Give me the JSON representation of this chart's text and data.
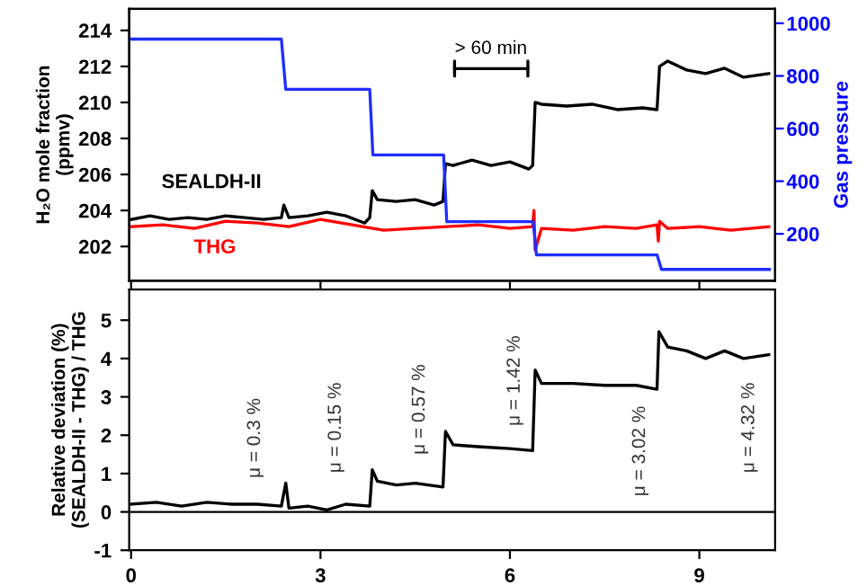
{
  "chart_data": [
    {
      "type": "line",
      "ylabel": "H₂O mole fraction\n(ppmv)",
      "y2label": "Gas pressure",
      "xlim": [
        -0.03,
        10.2
      ],
      "xticks": [
        0,
        3,
        6,
        9
      ],
      "ylim": [
        200.1,
        215.2
      ],
      "yticks": [
        202,
        204,
        206,
        208,
        210,
        212,
        214
      ],
      "y2lim": [
        22,
        1055
      ],
      "y2ticks": [
        200,
        400,
        600,
        800,
        1000
      ],
      "tick_labels": "y",
      "legend": false,
      "annotations": [
        "> 60 min"
      ],
      "series": [
        {
          "name": "SEALDH-II",
          "color": "#000000",
          "x": [
            0,
            0.3,
            0.6,
            0.9,
            1.2,
            1.5,
            1.8,
            2.1,
            2.38,
            2.42,
            2.5,
            2.8,
            3.1,
            3.4,
            3.7,
            3.78,
            3.82,
            3.9,
            4.2,
            4.5,
            4.8,
            4.94,
            4.98,
            5.1,
            5.4,
            5.7,
            6.0,
            6.3,
            6.36,
            6.4,
            6.5,
            6.9,
            7.3,
            7.7,
            8.1,
            8.33,
            8.37,
            8.5,
            8.8,
            9.1,
            9.4,
            9.7,
            10.1
          ],
          "values": [
            203.5,
            203.7,
            203.5,
            203.6,
            203.5,
            203.7,
            203.6,
            203.5,
            203.6,
            204.3,
            203.6,
            203.7,
            203.9,
            203.7,
            203.3,
            203.6,
            205.1,
            204.6,
            204.5,
            204.6,
            204.3,
            204.5,
            206.6,
            206.5,
            206.8,
            206.5,
            206.7,
            206.3,
            206.5,
            210.0,
            209.9,
            209.8,
            209.9,
            209.6,
            209.7,
            209.6,
            212.0,
            212.3,
            211.8,
            211.6,
            211.9,
            211.4,
            211.6
          ]
        },
        {
          "name": "THG",
          "color": "#ff0000",
          "x": [
            0,
            0.5,
            1,
            1.5,
            2,
            2.5,
            3,
            3.5,
            4,
            4.5,
            5,
            5.5,
            6,
            6.36,
            6.38,
            6.4,
            6.5,
            7,
            7.5,
            8,
            8.33,
            8.35,
            8.37,
            8.5,
            9,
            9.5,
            10.1
          ],
          "values": [
            203.1,
            203.2,
            203.0,
            203.4,
            203.3,
            203.1,
            203.5,
            203.2,
            202.9,
            203.0,
            203.1,
            203.2,
            203.0,
            203.1,
            204.0,
            201.8,
            203.0,
            202.9,
            203.1,
            203.0,
            203.2,
            202.3,
            203.4,
            203.0,
            203.1,
            202.9,
            203.1
          ]
        },
        {
          "color": "#1f2fff",
          "axis": "y2",
          "x": [
            0,
            2.38,
            2.45,
            3.78,
            3.83,
            4.95,
            5.0,
            6.37,
            6.42,
            8.33,
            8.4,
            10.11
          ],
          "values": [
            940,
            940,
            749,
            749,
            500,
            500,
            246,
            246,
            120,
            120,
            65,
            65
          ]
        }
      ]
    },
    {
      "type": "line",
      "ylabel": "Relative deviation (%)\n(SEALDH-II - THG) / THG",
      "xlim": [
        -0.03,
        10.2
      ],
      "xticks": [
        0,
        3,
        6,
        9
      ],
      "ylim": [
        -1,
        5.8
      ],
      "yticks": [
        -1,
        0,
        1,
        2,
        3,
        4,
        5
      ],
      "legend": false,
      "ref_lines": [
        {
          "axis": "y",
          "value": 0,
          "color": "#000000"
        }
      ],
      "annotations": [
        "μ = 0.3 %",
        "μ = 0.15 %",
        "μ = 0.57 %",
        "μ = 1.42 %",
        "μ = 3.02 %",
        "μ = 4.32 %"
      ],
      "series": [
        {
          "color": "#000000",
          "x": [
            0,
            0.4,
            0.8,
            1.2,
            1.6,
            2.0,
            2.38,
            2.45,
            2.5,
            2.8,
            3.1,
            3.4,
            3.78,
            3.82,
            3.9,
            4.2,
            4.5,
            4.94,
            4.98,
            5.1,
            5.5,
            6.0,
            6.36,
            6.4,
            6.5,
            7.0,
            7.5,
            8.0,
            8.33,
            8.36,
            8.5,
            8.8,
            9.1,
            9.4,
            9.7,
            10.1
          ],
          "values": [
            0.2,
            0.25,
            0.15,
            0.25,
            0.2,
            0.2,
            0.15,
            0.75,
            0.1,
            0.15,
            0.05,
            0.2,
            0.15,
            1.1,
            0.8,
            0.7,
            0.75,
            0.65,
            2.1,
            1.75,
            1.7,
            1.65,
            1.6,
            3.7,
            3.35,
            3.35,
            3.3,
            3.3,
            3.2,
            4.7,
            4.3,
            4.2,
            4.0,
            4.2,
            4.0,
            4.1
          ]
        }
      ]
    }
  ]
}
